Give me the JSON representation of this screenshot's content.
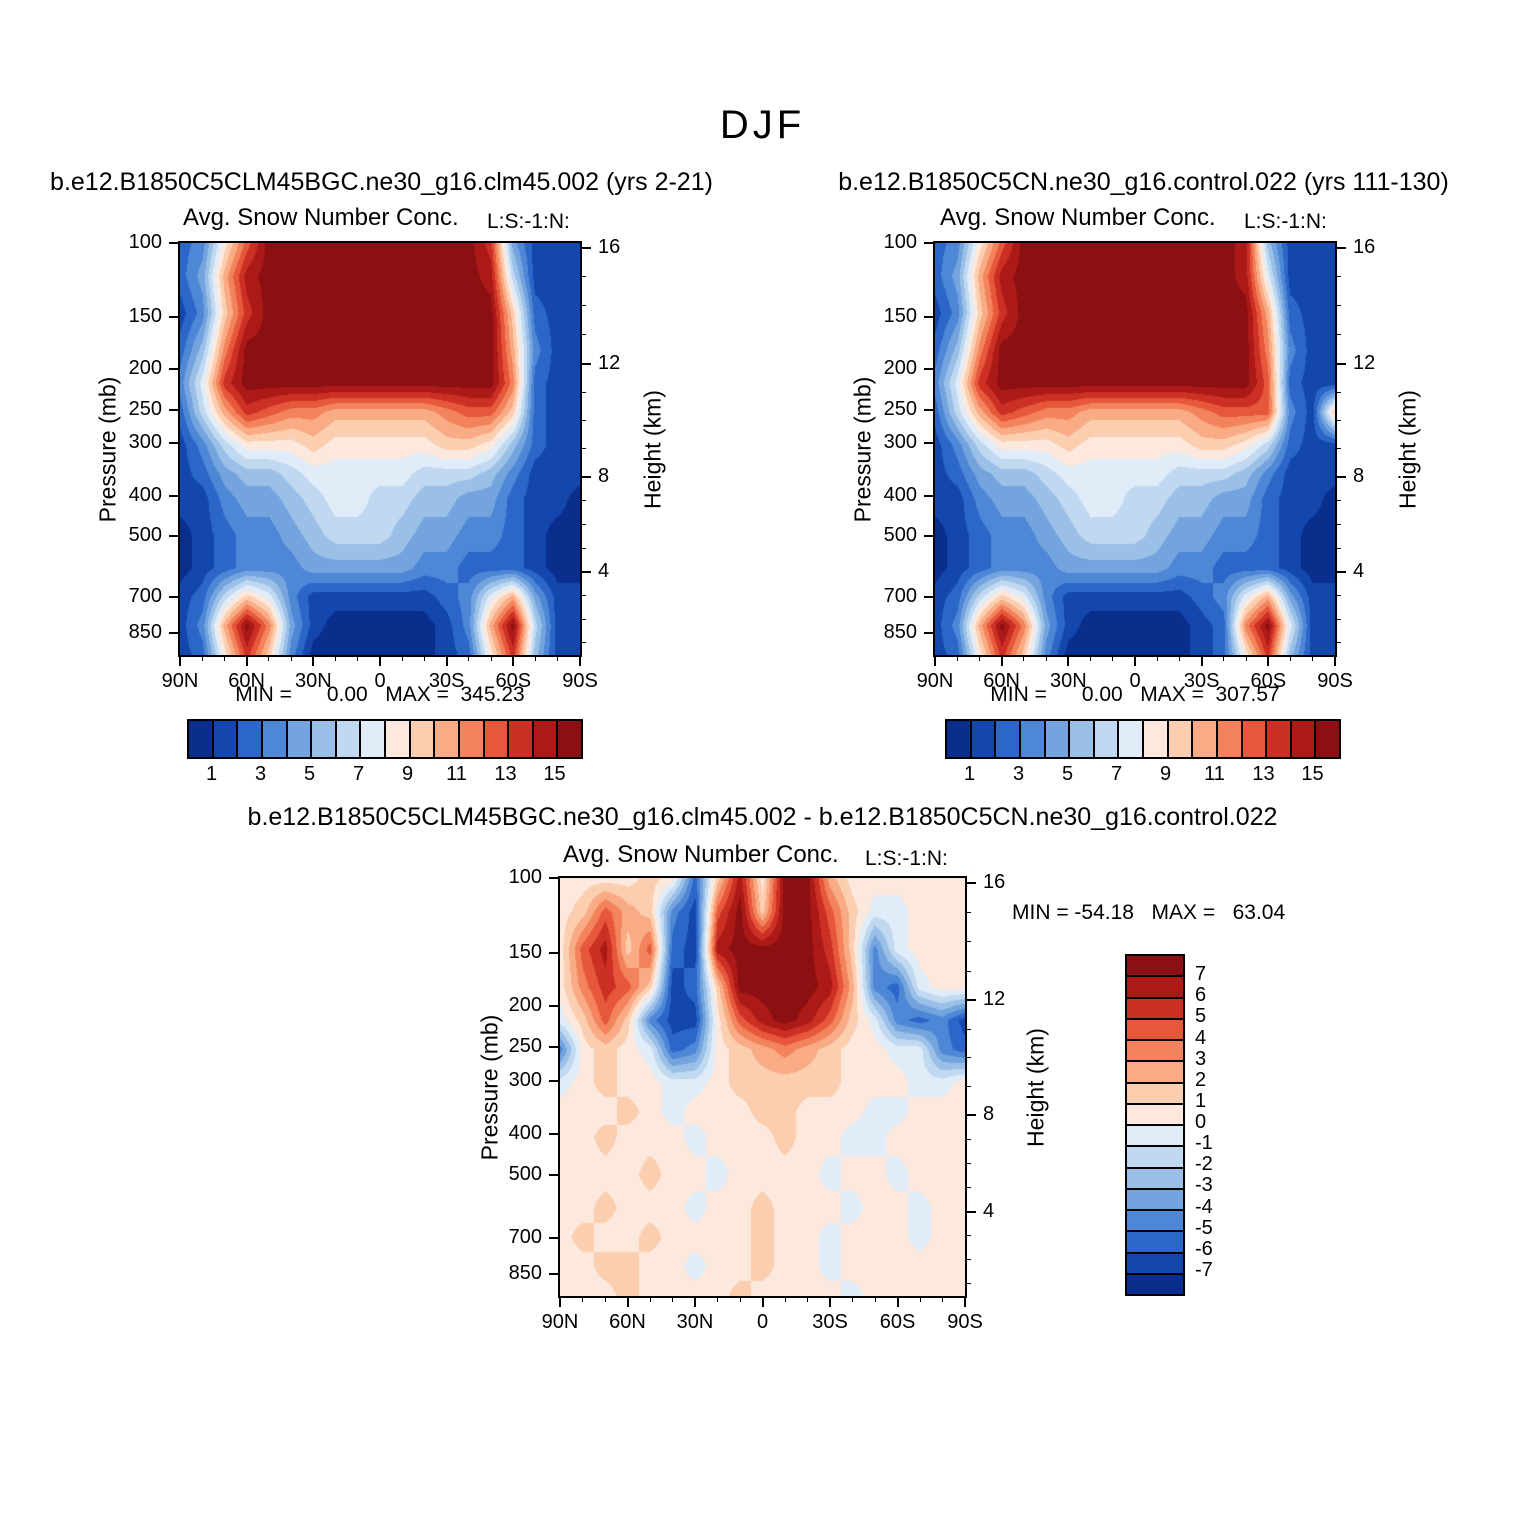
{
  "figure": {
    "title": "DJF"
  },
  "palette": [
    "#0a2e8c",
    "#1347ad",
    "#2b66c8",
    "#4e87d6",
    "#74a4de",
    "#9ac0e8",
    "#c0d8f0",
    "#e0ecf8",
    "#fce8dc",
    "#fbceb0",
    "#f8ab85",
    "#f3835c",
    "#e6573b",
    "#cc2f23",
    "#ab1a17",
    "#8c0f12"
  ],
  "chart_data": [
    {
      "type": "heatmap",
      "title": "b.e12.B1850C5CLM45BGC.ne30_g16.clm45.002 (yrs 2-21)",
      "subtitle": "Avg. Snow Number Conc.",
      "subtitle_tag": "L:S:-1:N:",
      "ylabel": "Pressure (mb)",
      "y2label": "Height (km)",
      "x_ticks": [
        "90N",
        "60N",
        "30N",
        "0",
        "30S",
        "60S",
        "90S"
      ],
      "pressure_ticks": [
        "100",
        "150",
        "200",
        "250",
        "300",
        "400",
        "500",
        "700",
        "850"
      ],
      "height_ticks": [
        "16",
        "12",
        "8",
        "4"
      ],
      "height_tick_fractions": [
        0.012,
        0.293,
        0.568,
        0.798
      ],
      "min": "0.00",
      "max": "345.23",
      "stats": "MIN =      0.00   MAX =  345.23",
      "colorbar_labels": [
        "1",
        "3",
        "5",
        "7",
        "9",
        "11",
        "13",
        "15"
      ],
      "contour_levels": [
        1,
        2,
        3,
        4,
        5,
        6,
        7,
        8,
        9,
        10,
        11,
        12,
        13,
        14,
        15
      ],
      "row_fractions": [
        0,
        0.08,
        0.17,
        0.26,
        0.34,
        0.41,
        0.49,
        0.56,
        0.62,
        0.71,
        0.79,
        0.86,
        0.93,
        1
      ],
      "grid": [
        "238cffffffffffd4111",
        "24aeffffffffffe6111",
        "139dfffffffffff9211",
        "25bffffffffffffa311",
        "37dffffffffffffb211",
        "26adcbbaaaaabcc9211",
        "1368889888889985211",
        "1245567777766653111",
        "1134456776655442110",
        "0123345666544332100",
        "0123334444433222100",
        "126973111111237a411",
        "13afb410000013af611",
        "128d93000000128d511"
      ]
    },
    {
      "type": "heatmap",
      "title": "b.e12.B1850C5CN.ne30_g16.control.022 (yrs 111-130)",
      "subtitle": "Avg. Snow Number Conc.",
      "subtitle_tag": "L:S:-1:N:",
      "ylabel": "Pressure (mb)",
      "y2label": "Height (km)",
      "x_ticks": [
        "90N",
        "60N",
        "30N",
        "0",
        "30S",
        "60S",
        "90S"
      ],
      "pressure_ticks": [
        "100",
        "150",
        "200",
        "250",
        "300",
        "400",
        "500",
        "700",
        "850"
      ],
      "height_ticks": [
        "16",
        "12",
        "8",
        "4"
      ],
      "height_tick_fractions": [
        0.012,
        0.293,
        0.568,
        0.798
      ],
      "min": "0.00",
      "max": "307.57",
      "stats": "MIN =      0.00   MAX =  307.57",
      "colorbar_labels": [
        "1",
        "3",
        "5",
        "7",
        "9",
        "11",
        "13",
        "15"
      ],
      "contour_levels": [
        1,
        2,
        3,
        4,
        5,
        6,
        7,
        8,
        9,
        10,
        11,
        12,
        13,
        14,
        15
      ],
      "row_fractions": [
        0,
        0.08,
        0.17,
        0.26,
        0.34,
        0.41,
        0.49,
        0.56,
        0.62,
        0.71,
        0.79,
        0.86,
        0.93,
        1
      ],
      "grid": [
        "238cffffffffffe5111",
        "24aeffffffffffe7111",
        "139dfffffffffffa211",
        "25bffffffffffffb311",
        "37dffffffffffffc211",
        "26adcbbaaaaabccc319",
        "1368889888889986211",
        "1245567777766653111",
        "1134456776655442110",
        "0123345666544332100",
        "0123334444433222100",
        "126973111111237a411",
        "13afb410000012bf711",
        "128d93000000128d511"
      ]
    },
    {
      "type": "heatmap",
      "title": "b.e12.B1850C5CLM45BGC.ne30_g16.clm45.002 - b.e12.B1850C5CN.ne30_g16.control.022",
      "subtitle": "Avg. Snow Number Conc.",
      "subtitle_tag": "L:S:-1:N:",
      "ylabel": "Pressure (mb)",
      "y2label": "Height (km)",
      "x_ticks": [
        "90N",
        "60N",
        "30N",
        "0",
        "30S",
        "60S",
        "90S"
      ],
      "pressure_ticks": [
        "100",
        "150",
        "200",
        "250",
        "300",
        "400",
        "500",
        "700",
        "850"
      ],
      "height_ticks": [
        "16",
        "12",
        "8",
        "4"
      ],
      "height_tick_fractions": [
        0.012,
        0.293,
        0.568,
        0.798
      ],
      "min": "-54.18",
      "max": "63.04",
      "stats": "MIN = -54.18   MAX =   63.04",
      "colorbar_labels": [
        "7",
        "6",
        "5",
        "4",
        "3",
        "2",
        "1",
        "0",
        "-1",
        "-2",
        "-3",
        "-4",
        "-5",
        "-6",
        "-7"
      ],
      "contour_levels": [
        -7,
        -6,
        -5,
        -4,
        -3,
        -2,
        -1,
        0,
        1,
        2,
        3,
        4,
        5,
        6,
        7
      ],
      "row_fractions": [
        0,
        0.08,
        0.17,
        0.26,
        0.34,
        0.41,
        0.49,
        0.56,
        0.62,
        0.71,
        0.79,
        0.86,
        0.93,
        1
      ],
      "grid": [
        "88889829e8ffa888888",
        "89ca931cf9ffc977888",
        "8ce9c21effffd937888",
        "8bdc9129ffffea32788",
        "79c93118cefec973231",
        "389872389aba9887732",
        "7898877899999888778",
        "8889878889988877888",
        "8898887888988778888",
        "8888988788887887888",
        "8898887889888788788",
        "8988988889887888788",
        "8899887889887888888",
        "8889888898888788888"
      ]
    }
  ]
}
